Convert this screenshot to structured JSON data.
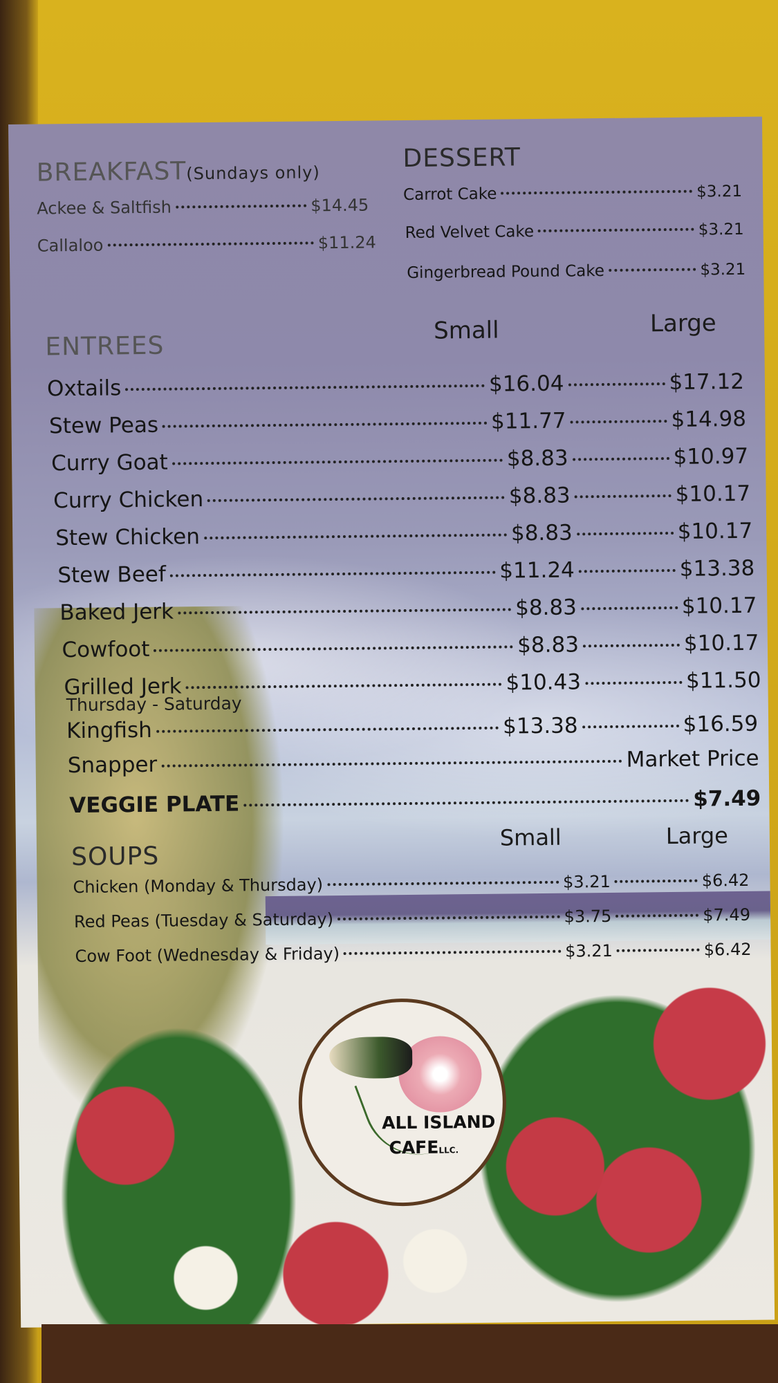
{
  "breakfast": {
    "title": "BREAKFAST",
    "note": "(Sundays only)",
    "items": [
      {
        "name": "Ackee & Saltfish",
        "price": "$14.45"
      },
      {
        "name": "Callaloo",
        "price": "$11.24"
      }
    ]
  },
  "dessert": {
    "title": "DESSERT",
    "items": [
      {
        "name": "Carrot Cake",
        "price": "$3.21"
      },
      {
        "name": "Red Velvet Cake",
        "price": "$3.21"
      },
      {
        "name": "Gingerbread Pound Cake",
        "price": "$3.21"
      }
    ]
  },
  "entrees": {
    "title": "ENTREES",
    "col_small": "Small",
    "col_large": "Large",
    "items": [
      {
        "name": "Oxtails",
        "small": "$16.04",
        "large": "$17.12"
      },
      {
        "name": "Stew Peas",
        "small": "$11.77",
        "large": "$14.98"
      },
      {
        "name": "Curry Goat",
        "small": "$8.83",
        "large": "$10.97"
      },
      {
        "name": "Curry Chicken",
        "small": "$8.83",
        "large": "$10.17"
      },
      {
        "name": "Stew Chicken",
        "small": "$8.83",
        "large": "$10.17"
      },
      {
        "name": "Stew Beef",
        "small": "$11.24",
        "large": "$13.38"
      },
      {
        "name": "Baked Jerk",
        "small": "$8.83",
        "large": "$10.17"
      },
      {
        "name": "Cowfoot",
        "small": "$8.83",
        "large": "$10.17"
      },
      {
        "name": "Grilled Jerk",
        "small": "$10.43",
        "large": "$11.50"
      }
    ],
    "note": "Thursday - Saturday",
    "fish": [
      {
        "name": "Kingfish",
        "small": "$13.38",
        "large": "$16.59"
      },
      {
        "name": "Snapper",
        "price": "Market Price"
      }
    ]
  },
  "veggie": {
    "name": "VEGGIE PLATE",
    "price": "$7.49"
  },
  "soups": {
    "title": "SOUPS",
    "col_small": "Small",
    "col_large": "Large",
    "items": [
      {
        "name": "Chicken (Monday & Thursday)",
        "small": "$3.21",
        "large": "$6.42"
      },
      {
        "name": "Red Peas (Tuesday & Saturday)",
        "small": "$3.75",
        "large": "$7.49"
      },
      {
        "name": "Cow Foot (Wednesday & Friday)",
        "small": "$3.21",
        "large": "$6.42"
      }
    ]
  },
  "logo": {
    "line1": "ALL ISLAND",
    "line2": "CAFE",
    "suffix": "LLC."
  },
  "colors": {
    "wall": "#d4ad1c",
    "text": "#161616",
    "hibiscus": "#c43a45",
    "leaf": "#2f6e2c"
  }
}
